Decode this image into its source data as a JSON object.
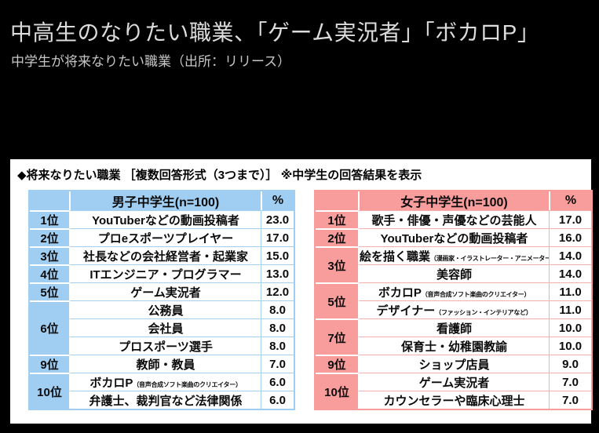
{
  "page": {
    "title": "中高生のなりたい職業、「ゲーム実況者」「ボカロP」",
    "subtitle": "中学生が将来なりたい職業（出所：リリース）"
  },
  "panel": {
    "heading": "◆将来なりたい職業 ［複数回答形式（3つまで）］ ※中学生の回答結果を表示"
  },
  "colors": {
    "background": "#000000",
    "panel": "#ffffff",
    "boys_accent": "#a0cef2",
    "boys_line": "#a5cfee",
    "girls_accent": "#f99d9c",
    "girls_line": "#f5aead",
    "text": "#0b0b0b",
    "title_text": "#dcdcdc"
  },
  "chart_data": [
    {
      "type": "table",
      "group": "boys",
      "header": {
        "rank": "",
        "name": "男子中学生(n=100)",
        "pct": "%"
      },
      "rows": [
        {
          "rank": "1位",
          "span": 1,
          "job": "YouTuberなどの動画投稿者",
          "note": "",
          "value": "23.0"
        },
        {
          "rank": "2位",
          "span": 1,
          "job": "プロeスポーツプレイヤー",
          "note": "",
          "value": "17.0"
        },
        {
          "rank": "3位",
          "span": 1,
          "job": "社長などの会社経営者・起業家",
          "note": "",
          "value": "15.0"
        },
        {
          "rank": "4位",
          "span": 1,
          "job": "ITエンジニア・プログラマー",
          "note": "",
          "value": "13.0"
        },
        {
          "rank": "5位",
          "span": 1,
          "job": "ゲーム実況者",
          "note": "",
          "value": "12.0"
        },
        {
          "rank": "6位",
          "span": 3,
          "job": "公務員",
          "note": "",
          "value": "8.0"
        },
        {
          "rank": "",
          "span": 0,
          "job": "会社員",
          "note": "",
          "value": "8.0"
        },
        {
          "rank": "",
          "span": 0,
          "job": "プロスポーツ選手",
          "note": "",
          "value": "8.0"
        },
        {
          "rank": "9位",
          "span": 1,
          "job": "教師・教員",
          "note": "",
          "value": "7.0"
        },
        {
          "rank": "10位",
          "span": 2,
          "job": "ボカロP",
          "note": "（音声合成ソフト楽曲のクリエイター）",
          "value": "6.0"
        },
        {
          "rank": "",
          "span": 0,
          "job": "弁護士、裁判官など法律関係",
          "note": "",
          "value": "6.0"
        }
      ]
    },
    {
      "type": "table",
      "group": "girls",
      "header": {
        "rank": "",
        "name": "女子中学生(n=100)",
        "pct": "%"
      },
      "rows": [
        {
          "rank": "1位",
          "span": 1,
          "job": "歌手・俳優・声優などの芸能人",
          "note": "",
          "value": "17.0"
        },
        {
          "rank": "2位",
          "span": 1,
          "job": "YouTuberなどの動画投稿者",
          "note": "",
          "value": "16.0"
        },
        {
          "rank": "3位",
          "span": 2,
          "job": "絵を描く職業",
          "note": "（漫画家・イラストレーター・アニメーター）",
          "value": "14.0"
        },
        {
          "rank": "",
          "span": 0,
          "job": "美容師",
          "note": "",
          "value": "14.0"
        },
        {
          "rank": "5位",
          "span": 2,
          "job": "ボカロP",
          "note": "（音声合成ソフト楽曲のクリエイター）",
          "value": "11.0"
        },
        {
          "rank": "",
          "span": 0,
          "job": "デザイナー",
          "note": "（ファッション・インテリアなど）",
          "value": "11.0"
        },
        {
          "rank": "7位",
          "span": 2,
          "job": "看護師",
          "note": "",
          "value": "10.0"
        },
        {
          "rank": "",
          "span": 0,
          "job": "保育士・幼稚園教諭",
          "note": "",
          "value": "10.0"
        },
        {
          "rank": "9位",
          "span": 1,
          "job": "ショップ店員",
          "note": "",
          "value": "9.0"
        },
        {
          "rank": "10位",
          "span": 2,
          "job": "ゲーム実況者",
          "note": "",
          "value": "7.0"
        },
        {
          "rank": "",
          "span": 0,
          "job": "カウンセラーや臨床心理士",
          "note": "",
          "value": "7.0"
        }
      ]
    }
  ]
}
